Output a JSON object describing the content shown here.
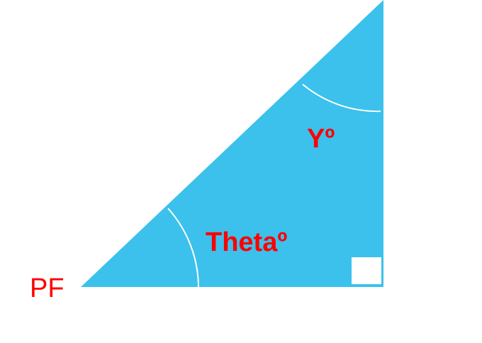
{
  "diagram": {
    "labels": {
      "vertex": "PF",
      "angle_bottom": "Thetaº",
      "angle_top": "Yº"
    },
    "colors": {
      "triangle_fill": "#3BC1EC",
      "arc_stroke": "#FFFFFF",
      "right_angle_box": "#FFFFFF",
      "label_color": "#FF0000"
    }
  }
}
